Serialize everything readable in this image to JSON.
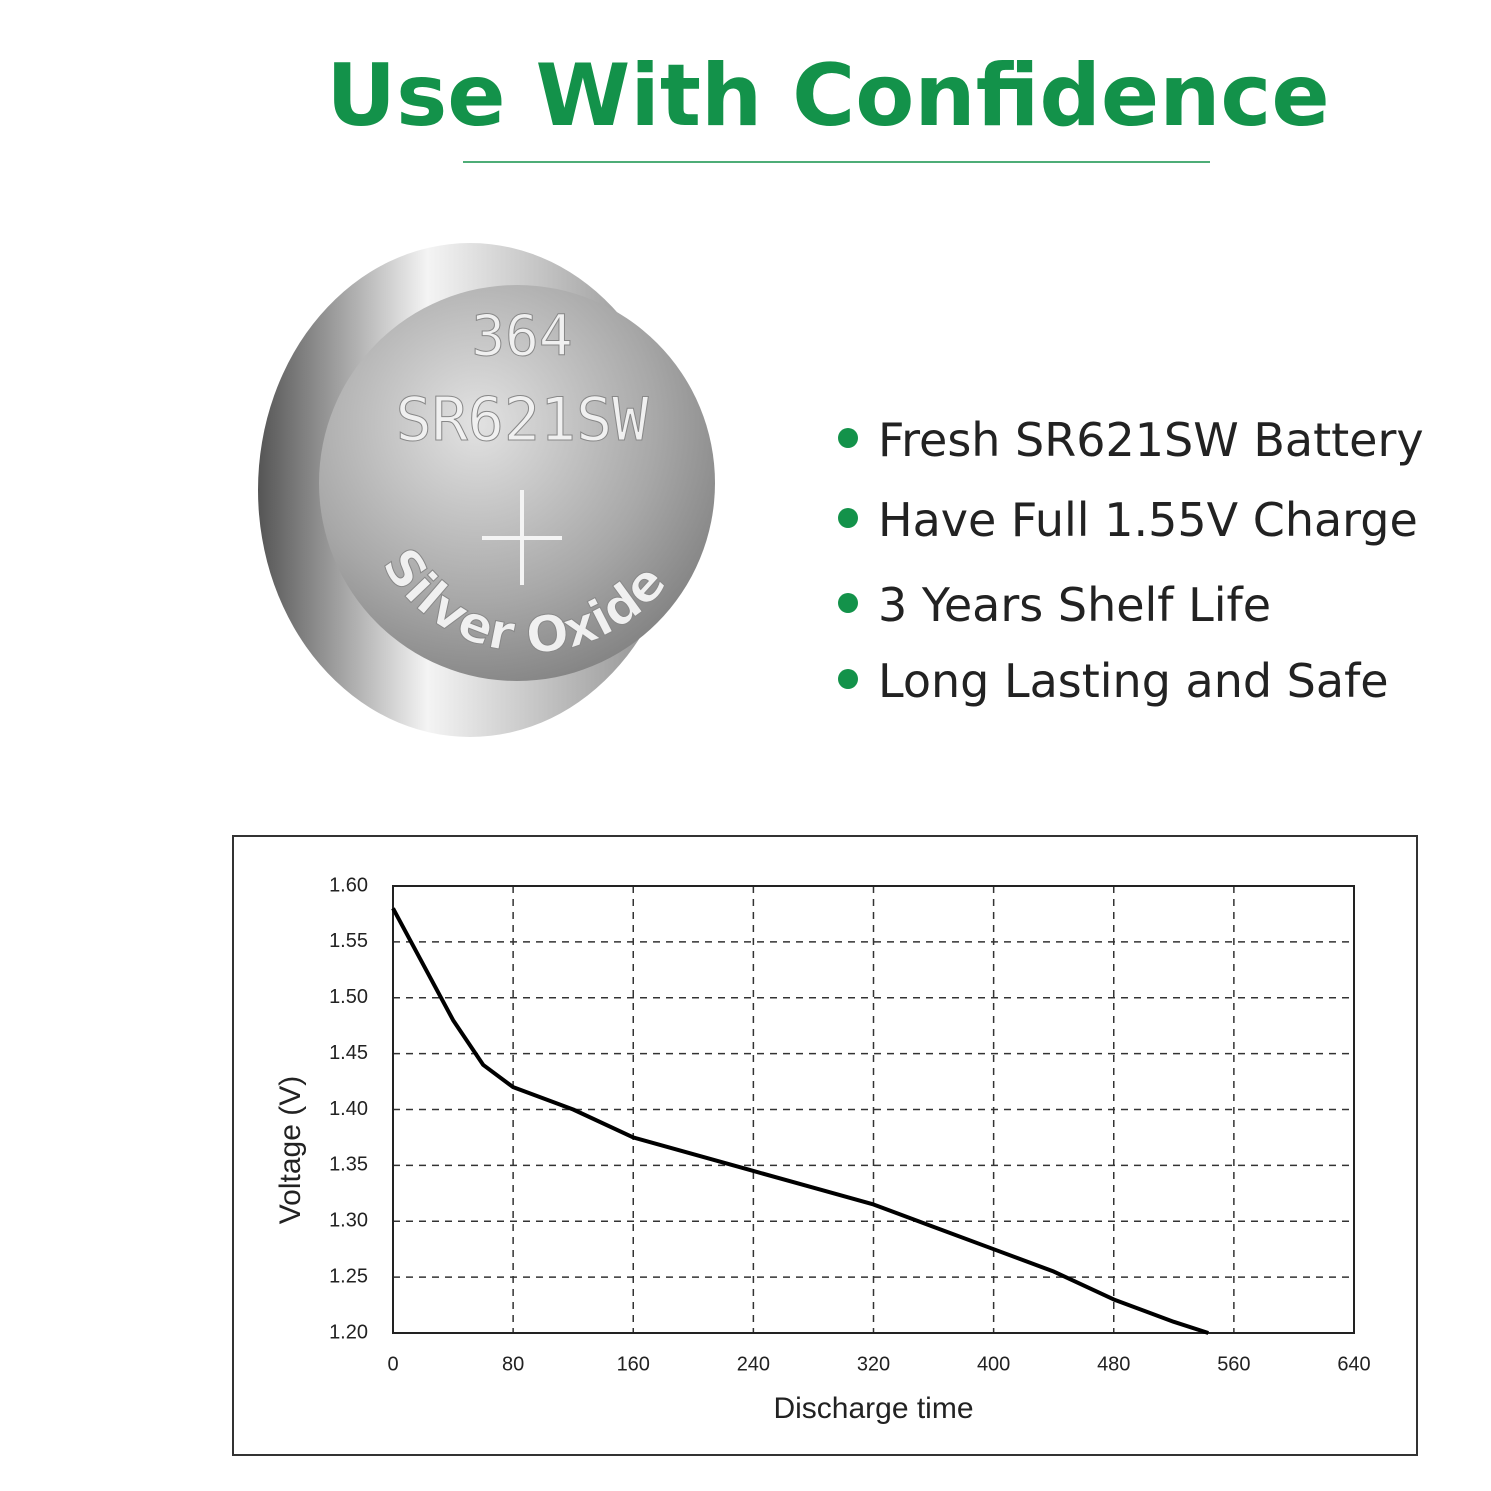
{
  "header": {
    "title": "Use With Confidence"
  },
  "battery": {
    "model": "364",
    "code": "SR621SW",
    "chemistry": "Silver Oxide"
  },
  "bullets": [
    "Fresh SR621SW Battery",
    "Have Full 1.55V Charge",
    "3 Years Shelf Life",
    "Long Lasting and Safe"
  ],
  "chart_data": {
    "type": "line",
    "x_label": "Discharge time",
    "y_label": "Voltage (V)",
    "x": [
      0,
      20,
      40,
      60,
      80,
      120,
      160,
      200,
      240,
      280,
      320,
      360,
      400,
      440,
      480,
      520,
      543
    ],
    "values": [
      1.58,
      1.53,
      1.48,
      1.44,
      1.42,
      1.4,
      1.375,
      1.36,
      1.345,
      1.33,
      1.315,
      1.295,
      1.275,
      1.255,
      1.23,
      1.21,
      1.2
    ],
    "color": "#000000",
    "xlim": [
      0,
      640
    ],
    "xticks": [
      0,
      80,
      160,
      240,
      320,
      400,
      480,
      560,
      640
    ],
    "ylim": [
      1.2,
      1.6
    ],
    "yticks": [
      {
        "value": 1.2,
        "label": "1.20"
      },
      1.25,
      {
        "value": 1.3,
        "label": "1.30"
      },
      1.35,
      {
        "value": 1.4,
        "label": "1.40"
      },
      1.45,
      {
        "value": 1.5,
        "label": "1.50"
      },
      1.55,
      {
        "value": 1.6,
        "label": "1.60"
      }
    ],
    "grid": true
  }
}
